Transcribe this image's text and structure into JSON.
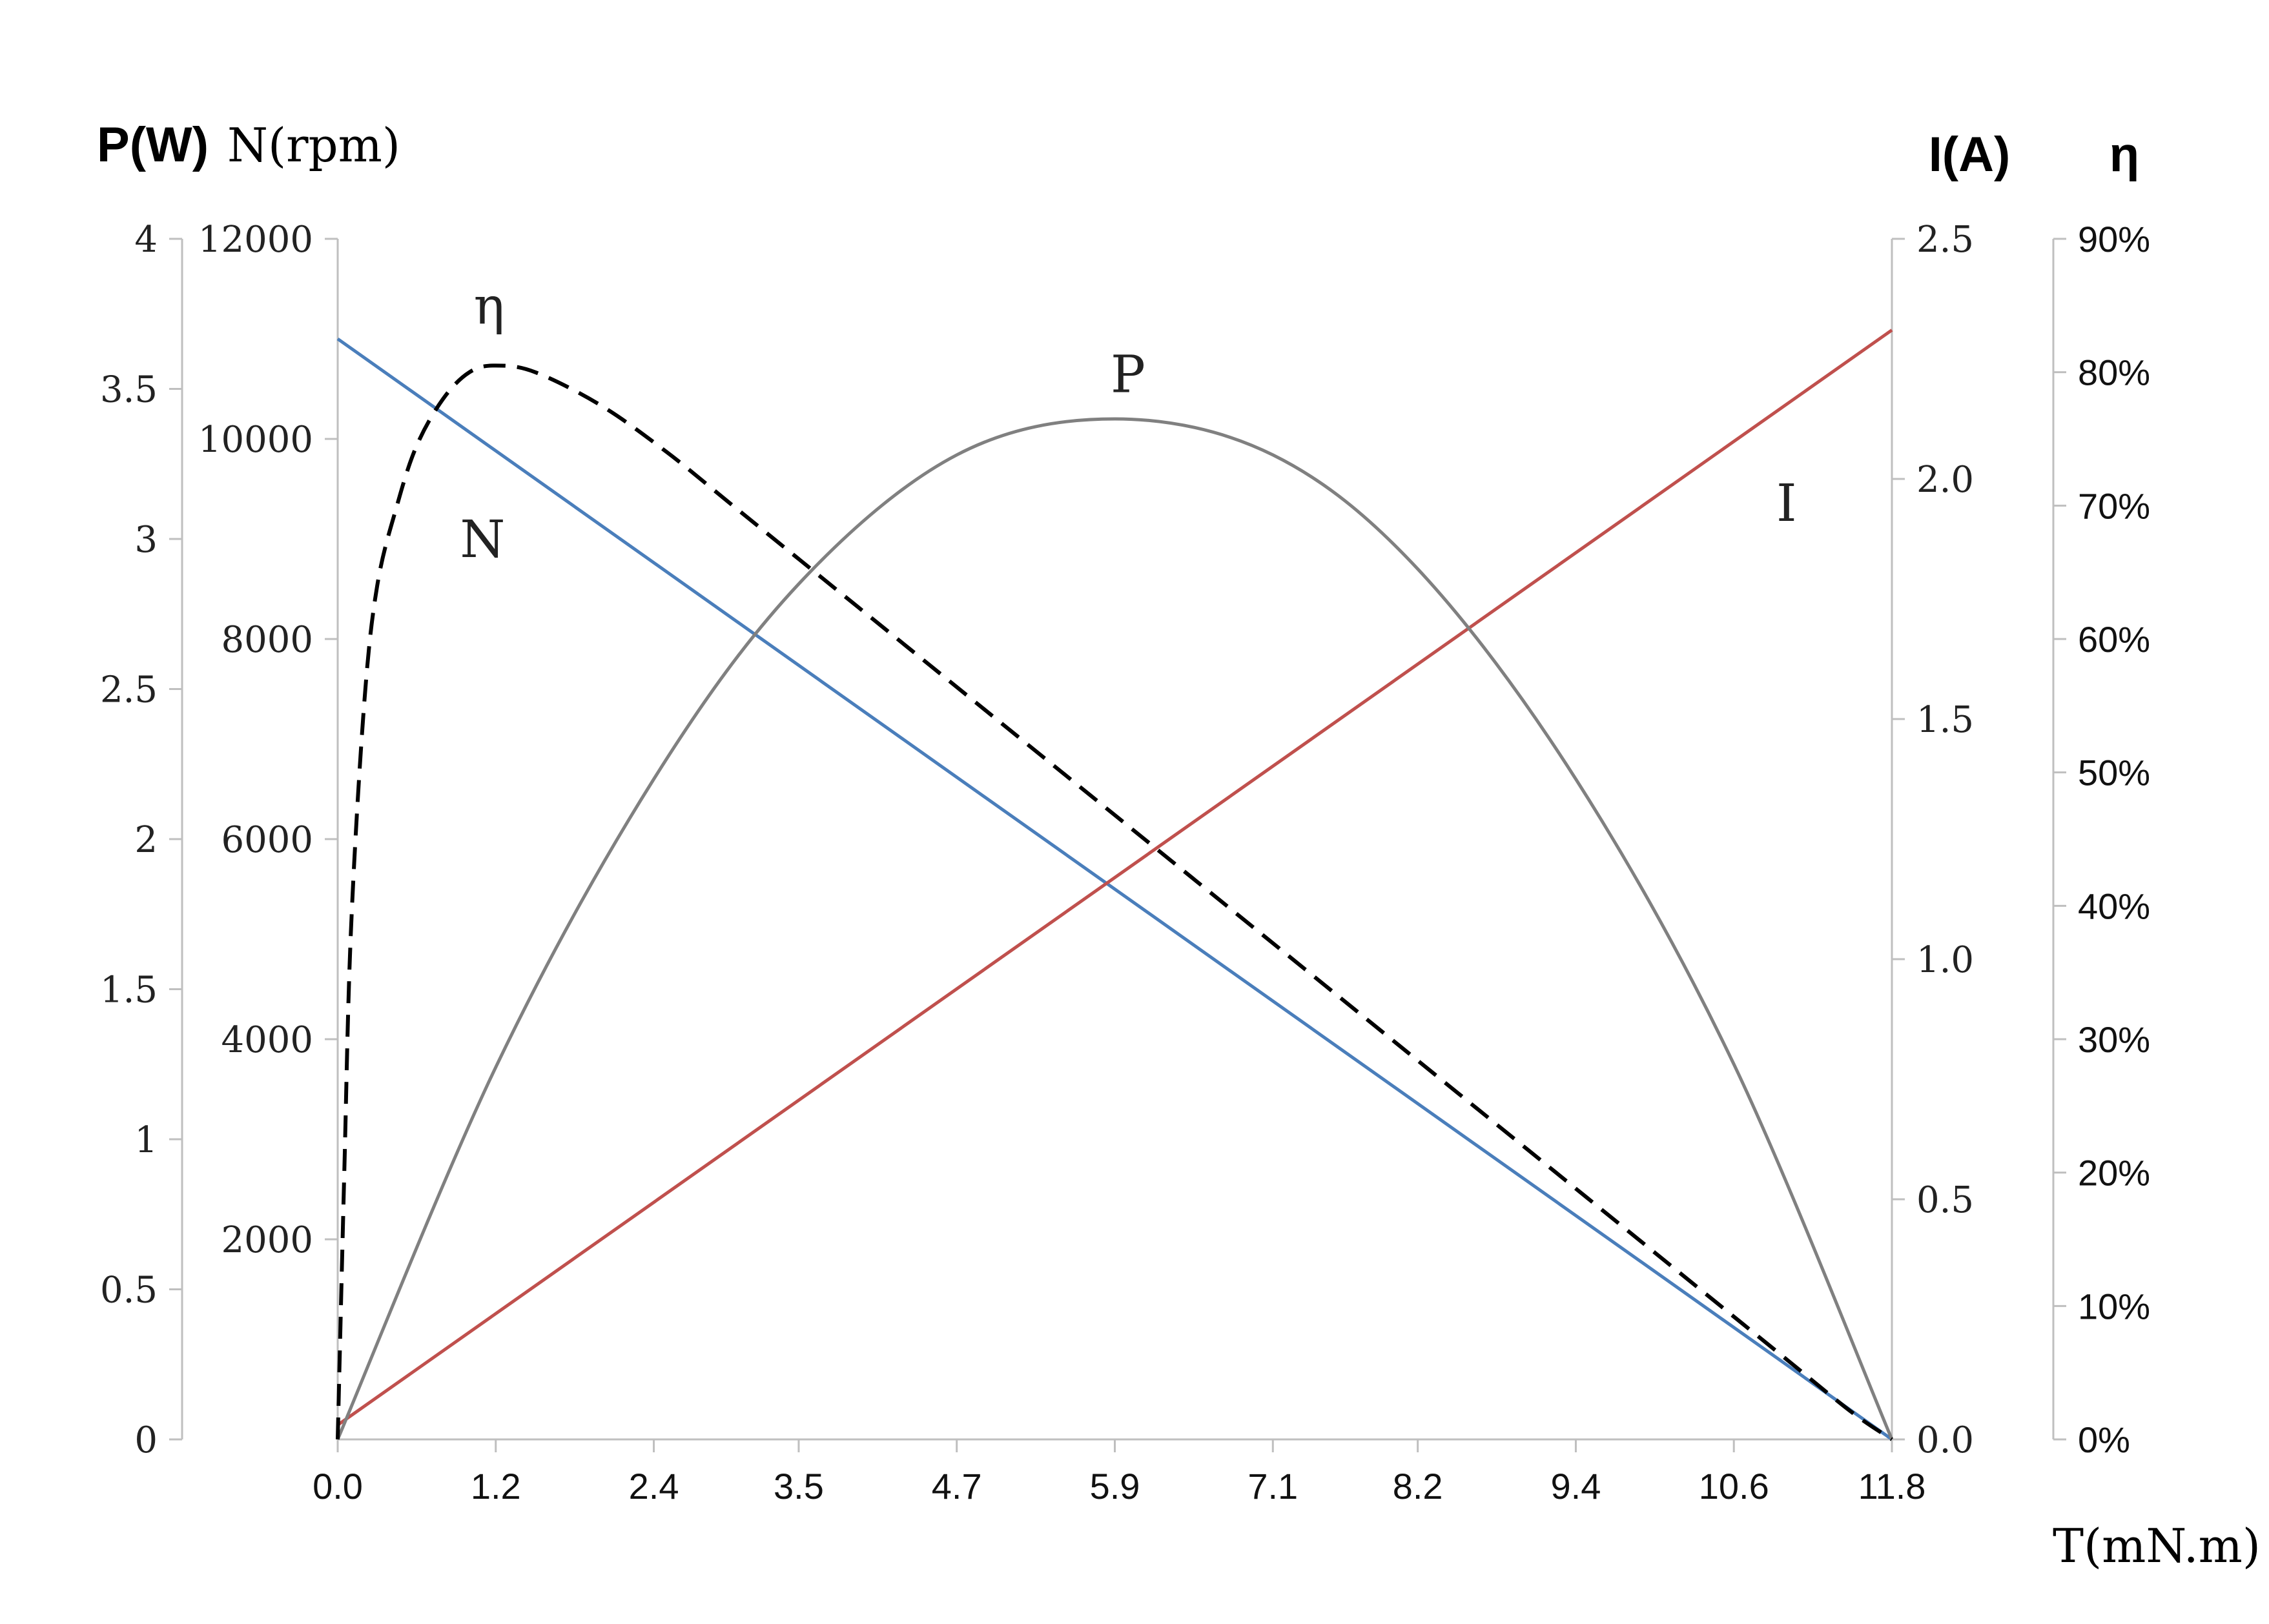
{
  "chart_data": {
    "type": "line",
    "x_axis": {
      "label": "T(mN.m)",
      "ticks": [
        "0.0",
        "1.2",
        "2.4",
        "3.5",
        "4.7",
        "5.9",
        "7.1",
        "8.2",
        "9.4",
        "10.6",
        "11.8"
      ],
      "range": [
        0,
        11.8
      ]
    },
    "y_axes": [
      {
        "id": "P",
        "label": "P(W)",
        "range": [
          0,
          4
        ],
        "ticks": [
          "0",
          "0.5",
          "1",
          "1.5",
          "2",
          "2.5",
          "3",
          "3.5",
          "4"
        ]
      },
      {
        "id": "N",
        "label": "N(rpm)",
        "range": [
          0,
          12000
        ],
        "ticks": [
          "2000",
          "4000",
          "6000",
          "8000",
          "10000",
          "12000"
        ]
      },
      {
        "id": "I",
        "label": "I(A)",
        "range": [
          0,
          2.5
        ],
        "ticks": [
          "0.0",
          "0.5",
          "1.0",
          "1.5",
          "2.0",
          "2.5"
        ]
      },
      {
        "id": "eta",
        "label": "η",
        "range": [
          0,
          90
        ],
        "ticks": [
          "0%",
          "10%",
          "20%",
          "30%",
          "40%",
          "50%",
          "60%",
          "70%",
          "80%",
          "90%"
        ]
      }
    ],
    "series": [
      {
        "name": "N",
        "axis": "N",
        "color": "#4a7ebb",
        "style": "solid",
        "x": [
          0,
          11.8
        ],
        "y": [
          11000,
          0
        ]
      },
      {
        "name": "I",
        "axis": "I",
        "color": "#c0504d",
        "style": "solid",
        "x": [
          0,
          11.8
        ],
        "y": [
          0.03,
          2.31
        ]
      },
      {
        "name": "P",
        "axis": "P",
        "color": "#808080",
        "style": "solid",
        "x": [
          0,
          1.2,
          2.4,
          3.5,
          4.7,
          5.9,
          7.1,
          8.2,
          9.4,
          10.6,
          11.8
        ],
        "y": [
          0,
          1.24,
          2.2,
          2.85,
          3.28,
          3.4,
          3.28,
          2.9,
          2.2,
          1.25,
          0
        ]
      },
      {
        "name": "η",
        "axis": "eta",
        "color": "#000000",
        "style": "dashed",
        "x": [
          0,
          0.05,
          0.1,
          0.2,
          0.3,
          0.45,
          0.6,
          0.8,
          1.0,
          1.2,
          1.5,
          2.0,
          2.5,
          3.0,
          3.5,
          4.0,
          4.5,
          5.0,
          5.5,
          6.0,
          6.5,
          7.0,
          7.5,
          8.0,
          8.5,
          9.0,
          9.5,
          10.0,
          10.5,
          11.0,
          11.5,
          11.8
        ],
        "y": [
          0,
          20,
          38,
          55,
          64,
          70,
          74.5,
          78,
          80,
          80.5,
          80,
          77.5,
          74,
          70,
          66,
          62,
          58,
          54,
          50,
          46,
          42,
          38,
          34,
          30,
          26,
          22,
          18,
          14,
          10,
          6,
          2,
          0
        ]
      }
    ],
    "curve_labels": [
      {
        "text": "η",
        "x": 1.15,
        "y_axis": "eta",
        "y": 85
      },
      {
        "text": "P",
        "x": 6.0,
        "y_axis": "P",
        "y": 3.55
      },
      {
        "text": "N",
        "x": 1.1,
        "y_axis": "N",
        "y": 9000
      },
      {
        "text": "I",
        "x": 11.0,
        "y_axis": "I",
        "y": 1.95
      }
    ]
  }
}
